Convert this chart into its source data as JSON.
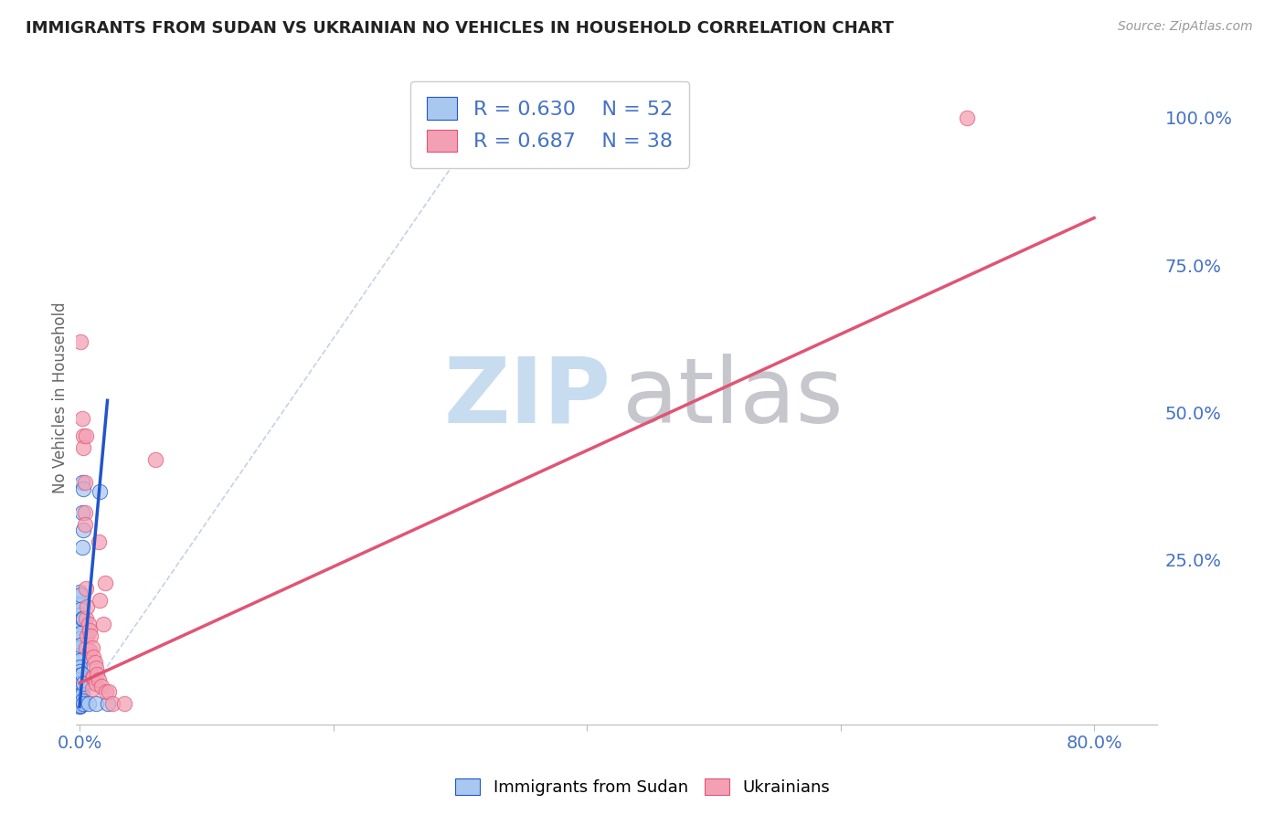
{
  "title": "IMMIGRANTS FROM SUDAN VS UKRAINIAN NO VEHICLES IN HOUSEHOLD CORRELATION CHART",
  "source": "Source: ZipAtlas.com",
  "ylabel": "No Vehicles in Household",
  "legend_label1": "Immigrants from Sudan",
  "legend_label2": "Ukrainians",
  "R1": 0.63,
  "N1": 52,
  "R2": 0.687,
  "N2": 38,
  "color_blue": "#A8C8F0",
  "color_pink": "#F4A0B4",
  "color_blue_line": "#2255CC",
  "color_pink_line": "#E05575",
  "color_diag": "#B0C4DE",
  "plot_bgcolor": "#FFFFFF",
  "grid_color": "#DDDDDD",
  "title_color": "#222222",
  "axis_color": "#4472C4",
  "watermark_color_ZIP": "#C8DCF0",
  "watermark_color_atlas": "#C0C0C8",
  "xlim": [
    -0.003,
    0.85
  ],
  "ylim": [
    -0.03,
    1.08
  ],
  "xtick_positions": [
    0.0,
    0.2,
    0.4,
    0.6,
    0.8
  ],
  "xtick_labels": [
    "0.0%",
    "",
    "",
    "",
    "80.0%"
  ],
  "ytick_positions": [
    0.0,
    0.25,
    0.5,
    0.75,
    1.0
  ],
  "ytick_labels": [
    "",
    "25.0%",
    "50.0%",
    "75.0%",
    "100.0%"
  ],
  "sudan_points": [
    [
      0.0,
      0.195
    ],
    [
      0.0,
      0.175
    ],
    [
      0.0,
      0.155
    ],
    [
      0.0,
      0.135
    ],
    [
      0.0,
      0.115
    ],
    [
      0.0,
      0.1
    ],
    [
      0.0,
      0.088
    ],
    [
      0.0,
      0.078
    ],
    [
      0.0,
      0.068
    ],
    [
      0.0,
      0.06
    ],
    [
      0.0,
      0.053
    ],
    [
      0.0,
      0.046
    ],
    [
      0.0,
      0.04
    ],
    [
      0.0,
      0.034
    ],
    [
      0.0,
      0.029
    ],
    [
      0.0,
      0.024
    ],
    [
      0.0,
      0.02
    ],
    [
      0.0,
      0.016
    ],
    [
      0.0,
      0.012
    ],
    [
      0.0,
      0.009
    ],
    [
      0.0,
      0.007
    ],
    [
      0.0,
      0.005
    ],
    [
      0.0,
      0.003
    ],
    [
      0.0,
      0.002
    ],
    [
      0.0,
      0.001
    ],
    [
      0.0,
      0.0
    ],
    [
      0.001,
      0.19
    ],
    [
      0.001,
      0.165
    ],
    [
      0.001,
      0.145
    ],
    [
      0.001,
      0.125
    ],
    [
      0.001,
      0.105
    ],
    [
      0.001,
      0.04
    ],
    [
      0.001,
      0.02
    ],
    [
      0.001,
      0.01
    ],
    [
      0.001,
      0.005
    ],
    [
      0.001,
      0.002
    ],
    [
      0.002,
      0.38
    ],
    [
      0.002,
      0.33
    ],
    [
      0.002,
      0.27
    ],
    [
      0.002,
      0.15
    ],
    [
      0.002,
      0.055
    ],
    [
      0.002,
      0.02
    ],
    [
      0.002,
      0.01
    ],
    [
      0.003,
      0.37
    ],
    [
      0.003,
      0.3
    ],
    [
      0.003,
      0.15
    ],
    [
      0.003,
      0.04
    ],
    [
      0.003,
      0.005
    ],
    [
      0.007,
      0.005
    ],
    [
      0.013,
      0.005
    ],
    [
      0.016,
      0.365
    ],
    [
      0.022,
      0.005
    ]
  ],
  "ukraine_points": [
    [
      0.001,
      0.62
    ],
    [
      0.002,
      0.49
    ],
    [
      0.003,
      0.46
    ],
    [
      0.003,
      0.44
    ],
    [
      0.004,
      0.38
    ],
    [
      0.004,
      0.33
    ],
    [
      0.004,
      0.31
    ],
    [
      0.005,
      0.46
    ],
    [
      0.005,
      0.2
    ],
    [
      0.005,
      0.15
    ],
    [
      0.005,
      0.1
    ],
    [
      0.006,
      0.17
    ],
    [
      0.006,
      0.12
    ],
    [
      0.007,
      0.14
    ],
    [
      0.008,
      0.13
    ],
    [
      0.008,
      0.095
    ],
    [
      0.009,
      0.12
    ],
    [
      0.01,
      0.1
    ],
    [
      0.01,
      0.05
    ],
    [
      0.01,
      0.03
    ],
    [
      0.011,
      0.085
    ],
    [
      0.011,
      0.05
    ],
    [
      0.012,
      0.075
    ],
    [
      0.013,
      0.065
    ],
    [
      0.013,
      0.04
    ],
    [
      0.014,
      0.055
    ],
    [
      0.015,
      0.045
    ],
    [
      0.016,
      0.18
    ],
    [
      0.017,
      0.035
    ],
    [
      0.019,
      0.14
    ],
    [
      0.02,
      0.21
    ],
    [
      0.021,
      0.025
    ],
    [
      0.023,
      0.025
    ],
    [
      0.026,
      0.005
    ],
    [
      0.035,
      0.005
    ],
    [
      0.06,
      0.42
    ],
    [
      0.7,
      1.0
    ],
    [
      0.015,
      0.28
    ]
  ],
  "blue_trendline_x": [
    0.0,
    0.022
  ],
  "blue_trendline_y": [
    0.0,
    0.52
  ],
  "pink_trendline_x": [
    0.0,
    0.8
  ],
  "pink_trendline_y": [
    0.04,
    0.83
  ],
  "diag_line_x": [
    0.0,
    0.32
  ],
  "diag_line_y": [
    0.0,
    1.0
  ]
}
